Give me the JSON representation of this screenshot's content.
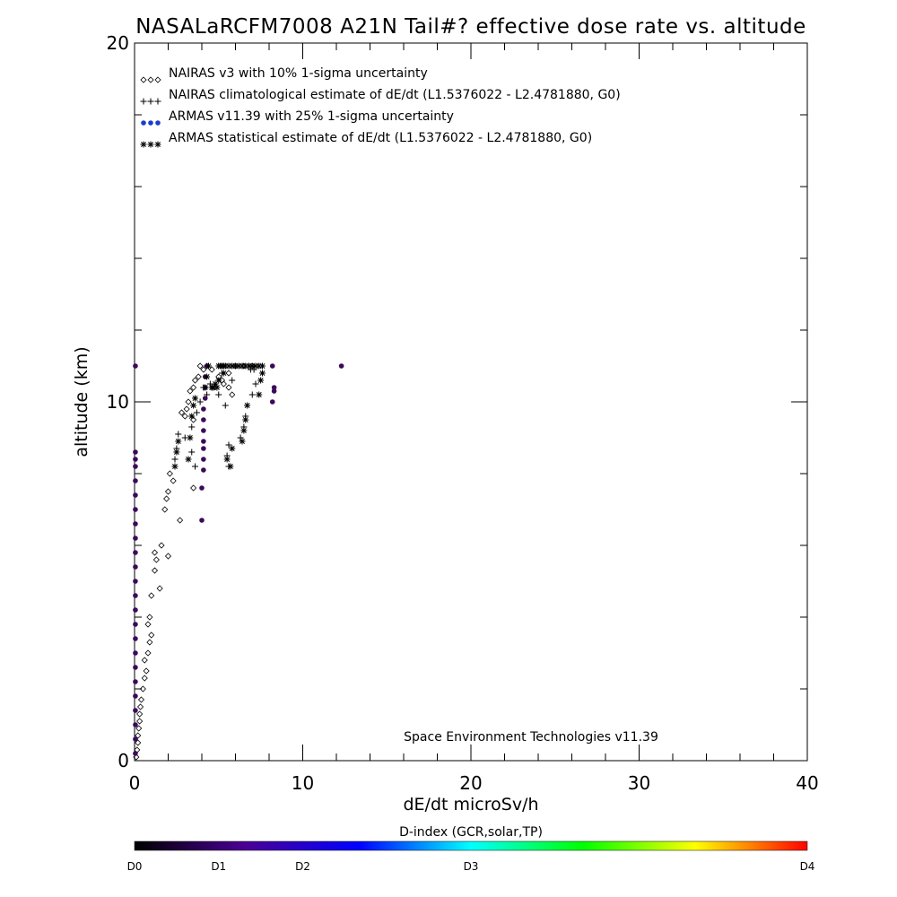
{
  "chart_data": {
    "type": "scatter",
    "title": "NASALaRCFM7008  A21N Tail#? effective dose rate vs. altitude",
    "xlabel": "dE/dt microSv/h",
    "ylabel": "altitude (km)",
    "xlim": [
      0,
      40
    ],
    "ylim": [
      0,
      20
    ],
    "x_ticks": [
      0,
      10,
      20,
      30,
      40
    ],
    "y_ticks": [
      0,
      10,
      20
    ],
    "x_tick_labels": [
      "0",
      "10",
      "20",
      "30",
      "40"
    ],
    "y_tick_labels": [
      "0",
      "10",
      "20"
    ],
    "legend_position": "top-left",
    "legend": [
      {
        "symbol": "◇◇◇",
        "text": "NAIRAS v3 with 10% 1-sigma uncertainty",
        "color": "#000000"
      },
      {
        "symbol": "+++",
        "text": "NAIRAS climatological estimate of dE/dt (L1.5376022 - L2.4781880, G0)",
        "color": "#000000"
      },
      {
        "symbol": "●●●",
        "text": "ARMAS v11.39 with 25% 1-sigma uncertainty",
        "color": "#1a3ccc"
      },
      {
        "symbol": "***",
        "text": "ARMAS statistical estimate of dE/dt (L1.5376022 - L2.4781880, G0)",
        "color": "#000000"
      }
    ],
    "annotation": "Space Environment Technologies v11.39",
    "series": [
      {
        "marker": "diamond",
        "points": [
          [
            0.1,
            0.1
          ],
          [
            0.15,
            0.3
          ],
          [
            0.2,
            0.5
          ],
          [
            0.2,
            0.7
          ],
          [
            0.25,
            0.9
          ],
          [
            0.3,
            1.1
          ],
          [
            0.3,
            1.3
          ],
          [
            0.35,
            1.5
          ],
          [
            0.4,
            1.7
          ],
          [
            0.5,
            2.0
          ],
          [
            0.6,
            2.3
          ],
          [
            0.7,
            2.5
          ],
          [
            0.6,
            2.8
          ],
          [
            0.8,
            3.0
          ],
          [
            0.9,
            3.3
          ],
          [
            1.0,
            3.5
          ],
          [
            0.8,
            3.8
          ],
          [
            0.9,
            4.0
          ],
          [
            1.0,
            4.6
          ],
          [
            1.5,
            4.8
          ],
          [
            1.2,
            5.3
          ],
          [
            1.3,
            5.6
          ],
          [
            1.2,
            5.8
          ],
          [
            2.0,
            5.7
          ],
          [
            1.6,
            6.0
          ],
          [
            1.8,
            7.0
          ],
          [
            1.9,
            7.3
          ],
          [
            2.0,
            7.5
          ],
          [
            2.7,
            6.7
          ],
          [
            2.3,
            7.8
          ],
          [
            2.1,
            8.0
          ],
          [
            3.5,
            7.6
          ],
          [
            3.5,
            9.5
          ],
          [
            2.8,
            9.7
          ],
          [
            3.1,
            9.8
          ],
          [
            3.0,
            9.6
          ],
          [
            3.2,
            10.0
          ],
          [
            3.3,
            10.3
          ],
          [
            3.5,
            10.4
          ],
          [
            3.6,
            10.6
          ],
          [
            3.8,
            10.7
          ],
          [
            3.9,
            11.0
          ],
          [
            4.1,
            10.9
          ],
          [
            4.3,
            11.0
          ],
          [
            4.6,
            10.9
          ],
          [
            5.0,
            10.7
          ],
          [
            5.2,
            10.6
          ],
          [
            5.3,
            10.5
          ],
          [
            5.6,
            10.4
          ],
          [
            5.8,
            10.2
          ],
          [
            5.6,
            10.8
          ],
          [
            6.0,
            11.0
          ],
          [
            6.5,
            11.0
          ],
          [
            7.0,
            11.0
          ]
        ]
      },
      {
        "marker": "plus",
        "points": [
          [
            2.4,
            8.4
          ],
          [
            2.5,
            8.7
          ],
          [
            2.6,
            9.1
          ],
          [
            3.0,
            9.0
          ],
          [
            3.4,
            8.6
          ],
          [
            3.6,
            8.2
          ],
          [
            3.4,
            9.3
          ],
          [
            3.7,
            9.7
          ],
          [
            3.9,
            10.0
          ],
          [
            4.1,
            10.4
          ],
          [
            4.3,
            10.2
          ],
          [
            4.5,
            10.5
          ],
          [
            5.2,
            10.8
          ],
          [
            5.0,
            10.2
          ],
          [
            5.4,
            9.9
          ],
          [
            5.5,
            8.5
          ],
          [
            5.6,
            8.2
          ],
          [
            5.6,
            8.8
          ],
          [
            6.3,
            9.0
          ],
          [
            6.5,
            9.3
          ],
          [
            6.6,
            9.6
          ],
          [
            7.0,
            10.2
          ],
          [
            7.2,
            10.5
          ],
          [
            7.1,
            10.9
          ],
          [
            6.9,
            10.9
          ],
          [
            5.8,
            10.6
          ]
        ]
      },
      {
        "marker": "dot",
        "color": "#3a0a5a",
        "points": [
          [
            0.05,
            0.2
          ],
          [
            0.05,
            0.6
          ],
          [
            0.05,
            1.0
          ],
          [
            0.05,
            1.4
          ],
          [
            0.05,
            1.8
          ],
          [
            0.05,
            2.2
          ],
          [
            0.05,
            2.6
          ],
          [
            0.05,
            3.0
          ],
          [
            0.05,
            3.4
          ],
          [
            0.05,
            3.8
          ],
          [
            0.05,
            4.2
          ],
          [
            0.05,
            4.6
          ],
          [
            0.05,
            5.0
          ],
          [
            0.05,
            5.4
          ],
          [
            0.05,
            5.8
          ],
          [
            0.05,
            6.2
          ],
          [
            0.05,
            6.6
          ],
          [
            0.05,
            7.0
          ],
          [
            0.05,
            7.4
          ],
          [
            0.05,
            7.8
          ],
          [
            0.05,
            8.2
          ],
          [
            0.05,
            8.4
          ],
          [
            0.05,
            8.6
          ],
          [
            0.05,
            11.0
          ],
          [
            4.0,
            6.7
          ],
          [
            4.0,
            7.6
          ],
          [
            4.1,
            8.1
          ],
          [
            4.1,
            8.4
          ],
          [
            4.1,
            8.7
          ],
          [
            4.1,
            8.9
          ],
          [
            4.1,
            9.2
          ],
          [
            4.1,
            9.5
          ],
          [
            4.1,
            9.8
          ],
          [
            4.2,
            10.1
          ],
          [
            4.2,
            10.4
          ],
          [
            4.2,
            10.7
          ],
          [
            4.3,
            11.0
          ],
          [
            8.2,
            11.0
          ],
          [
            8.3,
            10.4
          ],
          [
            8.3,
            10.3
          ],
          [
            8.2,
            10.0
          ],
          [
            12.3,
            11.0
          ]
        ]
      },
      {
        "marker": "asterisk",
        "points": [
          [
            2.4,
            8.2
          ],
          [
            2.5,
            8.6
          ],
          [
            2.6,
            8.9
          ],
          [
            3.2,
            8.4
          ],
          [
            3.3,
            9.0
          ],
          [
            3.4,
            9.6
          ],
          [
            3.5,
            9.9
          ],
          [
            3.6,
            10.1
          ],
          [
            4.2,
            10.4
          ],
          [
            4.3,
            10.7
          ],
          [
            4.6,
            10.4
          ],
          [
            4.8,
            10.5
          ],
          [
            5.0,
            10.6
          ],
          [
            5.3,
            10.8
          ],
          [
            5.5,
            8.4
          ],
          [
            5.8,
            8.7
          ],
          [
            5.7,
            8.2
          ],
          [
            6.4,
            8.9
          ],
          [
            6.5,
            9.2
          ],
          [
            6.6,
            9.5
          ],
          [
            6.7,
            9.9
          ],
          [
            7.4,
            10.2
          ],
          [
            7.5,
            10.6
          ],
          [
            7.6,
            10.8
          ],
          [
            5.6,
            11.0
          ],
          [
            5.8,
            11.0
          ],
          [
            6.0,
            11.0
          ],
          [
            6.2,
            11.0
          ],
          [
            6.4,
            11.0
          ],
          [
            6.6,
            11.0
          ],
          [
            6.8,
            11.0
          ],
          [
            7.0,
            11.0
          ],
          [
            7.2,
            11.0
          ],
          [
            7.4,
            11.0
          ],
          [
            7.6,
            11.0
          ],
          [
            4.4,
            11.0
          ],
          [
            4.6,
            10.4
          ],
          [
            4.7,
            10.4
          ],
          [
            4.9,
            10.4
          ],
          [
            5.0,
            11.0
          ],
          [
            5.1,
            11.0
          ],
          [
            5.2,
            11.0
          ],
          [
            5.3,
            11.0
          ],
          [
            5.4,
            11.0
          ]
        ]
      }
    ],
    "colorbar": {
      "title": "D-index (GCR,solar,TP)",
      "labels": [
        "D0",
        "D1",
        "D2",
        "D3",
        "D4"
      ],
      "label_positions": [
        0,
        0.125,
        0.25,
        0.5,
        1
      ],
      "colors": [
        "#000000",
        "#4b0096",
        "#0000ff",
        "#00ffff",
        "#00ff00",
        "#ffff00",
        "#ff0000"
      ]
    }
  }
}
